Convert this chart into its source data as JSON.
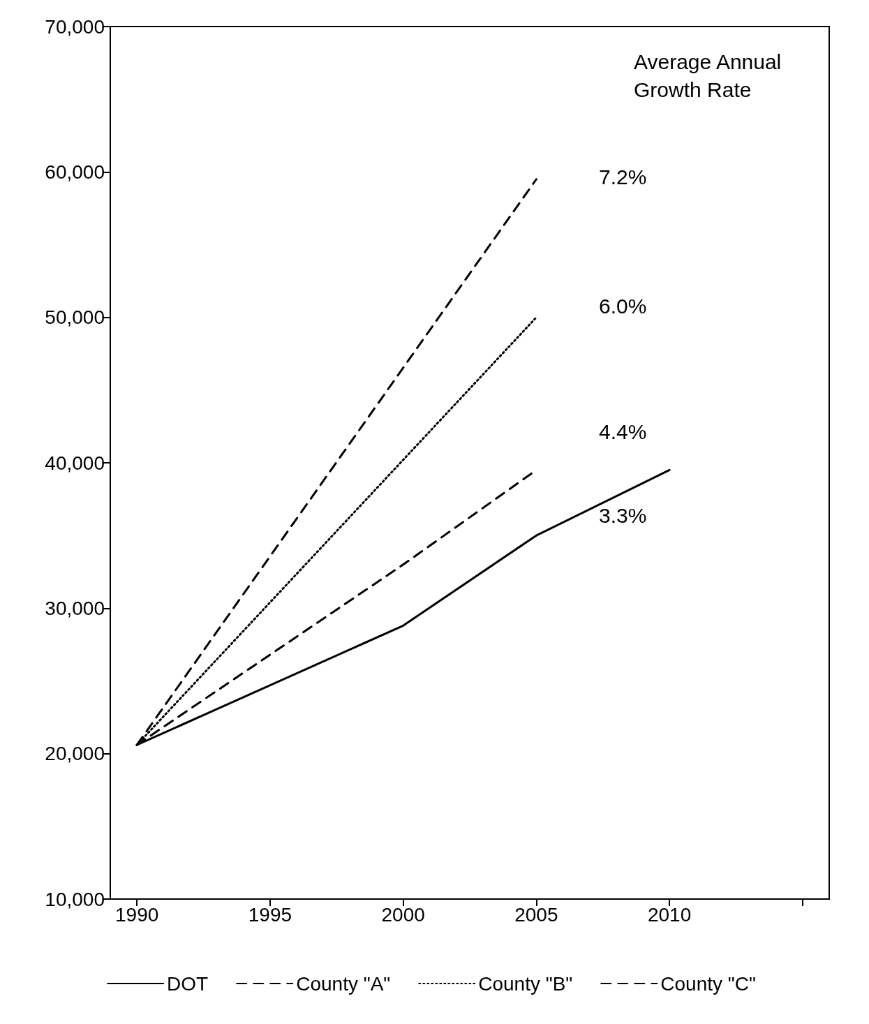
{
  "chart_data": {
    "type": "line",
    "xlim": [
      1989,
      2016
    ],
    "xticks": [
      1990,
      1995,
      2000,
      2005,
      2010,
      {
        "value": 2015,
        "label": null
      }
    ],
    "ylim": [
      10000,
      70000
    ],
    "yticks": [
      {
        "value": 10000,
        "label": "10,000"
      },
      {
        "value": 20000,
        "label": "20,000"
      },
      {
        "value": 30000,
        "label": "30,000"
      },
      {
        "value": 40000,
        "label": "40,000"
      },
      {
        "value": 50000,
        "label": "50,000"
      },
      {
        "value": 60000,
        "label": "60,000"
      },
      {
        "value": 70000,
        "label": "70,000"
      }
    ],
    "grid": false,
    "legend": "bottom",
    "marker": "none",
    "series": [
      {
        "name": "DOT",
        "color": "#000000",
        "line_style": "solid",
        "x": [
          1990,
          2000,
          2005,
          2010
        ],
        "values": [
          20600,
          28800,
          35000,
          39500
        ]
      },
      {
        "name": "County \"A\"",
        "color": "#000000",
        "line_style": "dashed",
        "x": [
          1990,
          2000,
          2005
        ],
        "values": [
          20600,
          33000,
          39500
        ]
      },
      {
        "name": "County \"B\"",
        "color": "#000000",
        "line_style": "dotted",
        "x": [
          1990,
          2005
        ],
        "values": [
          20600,
          50000
        ]
      },
      {
        "name": "County \"C\"",
        "color": "#000000",
        "line_style": "dashed",
        "x": [
          1990,
          2005
        ],
        "values": [
          20600,
          59500
        ]
      }
    ],
    "annotations": [
      "Average Annual Growth Rate",
      "7.2%",
      "6.0%",
      "4.4%",
      "3.3%"
    ]
  }
}
